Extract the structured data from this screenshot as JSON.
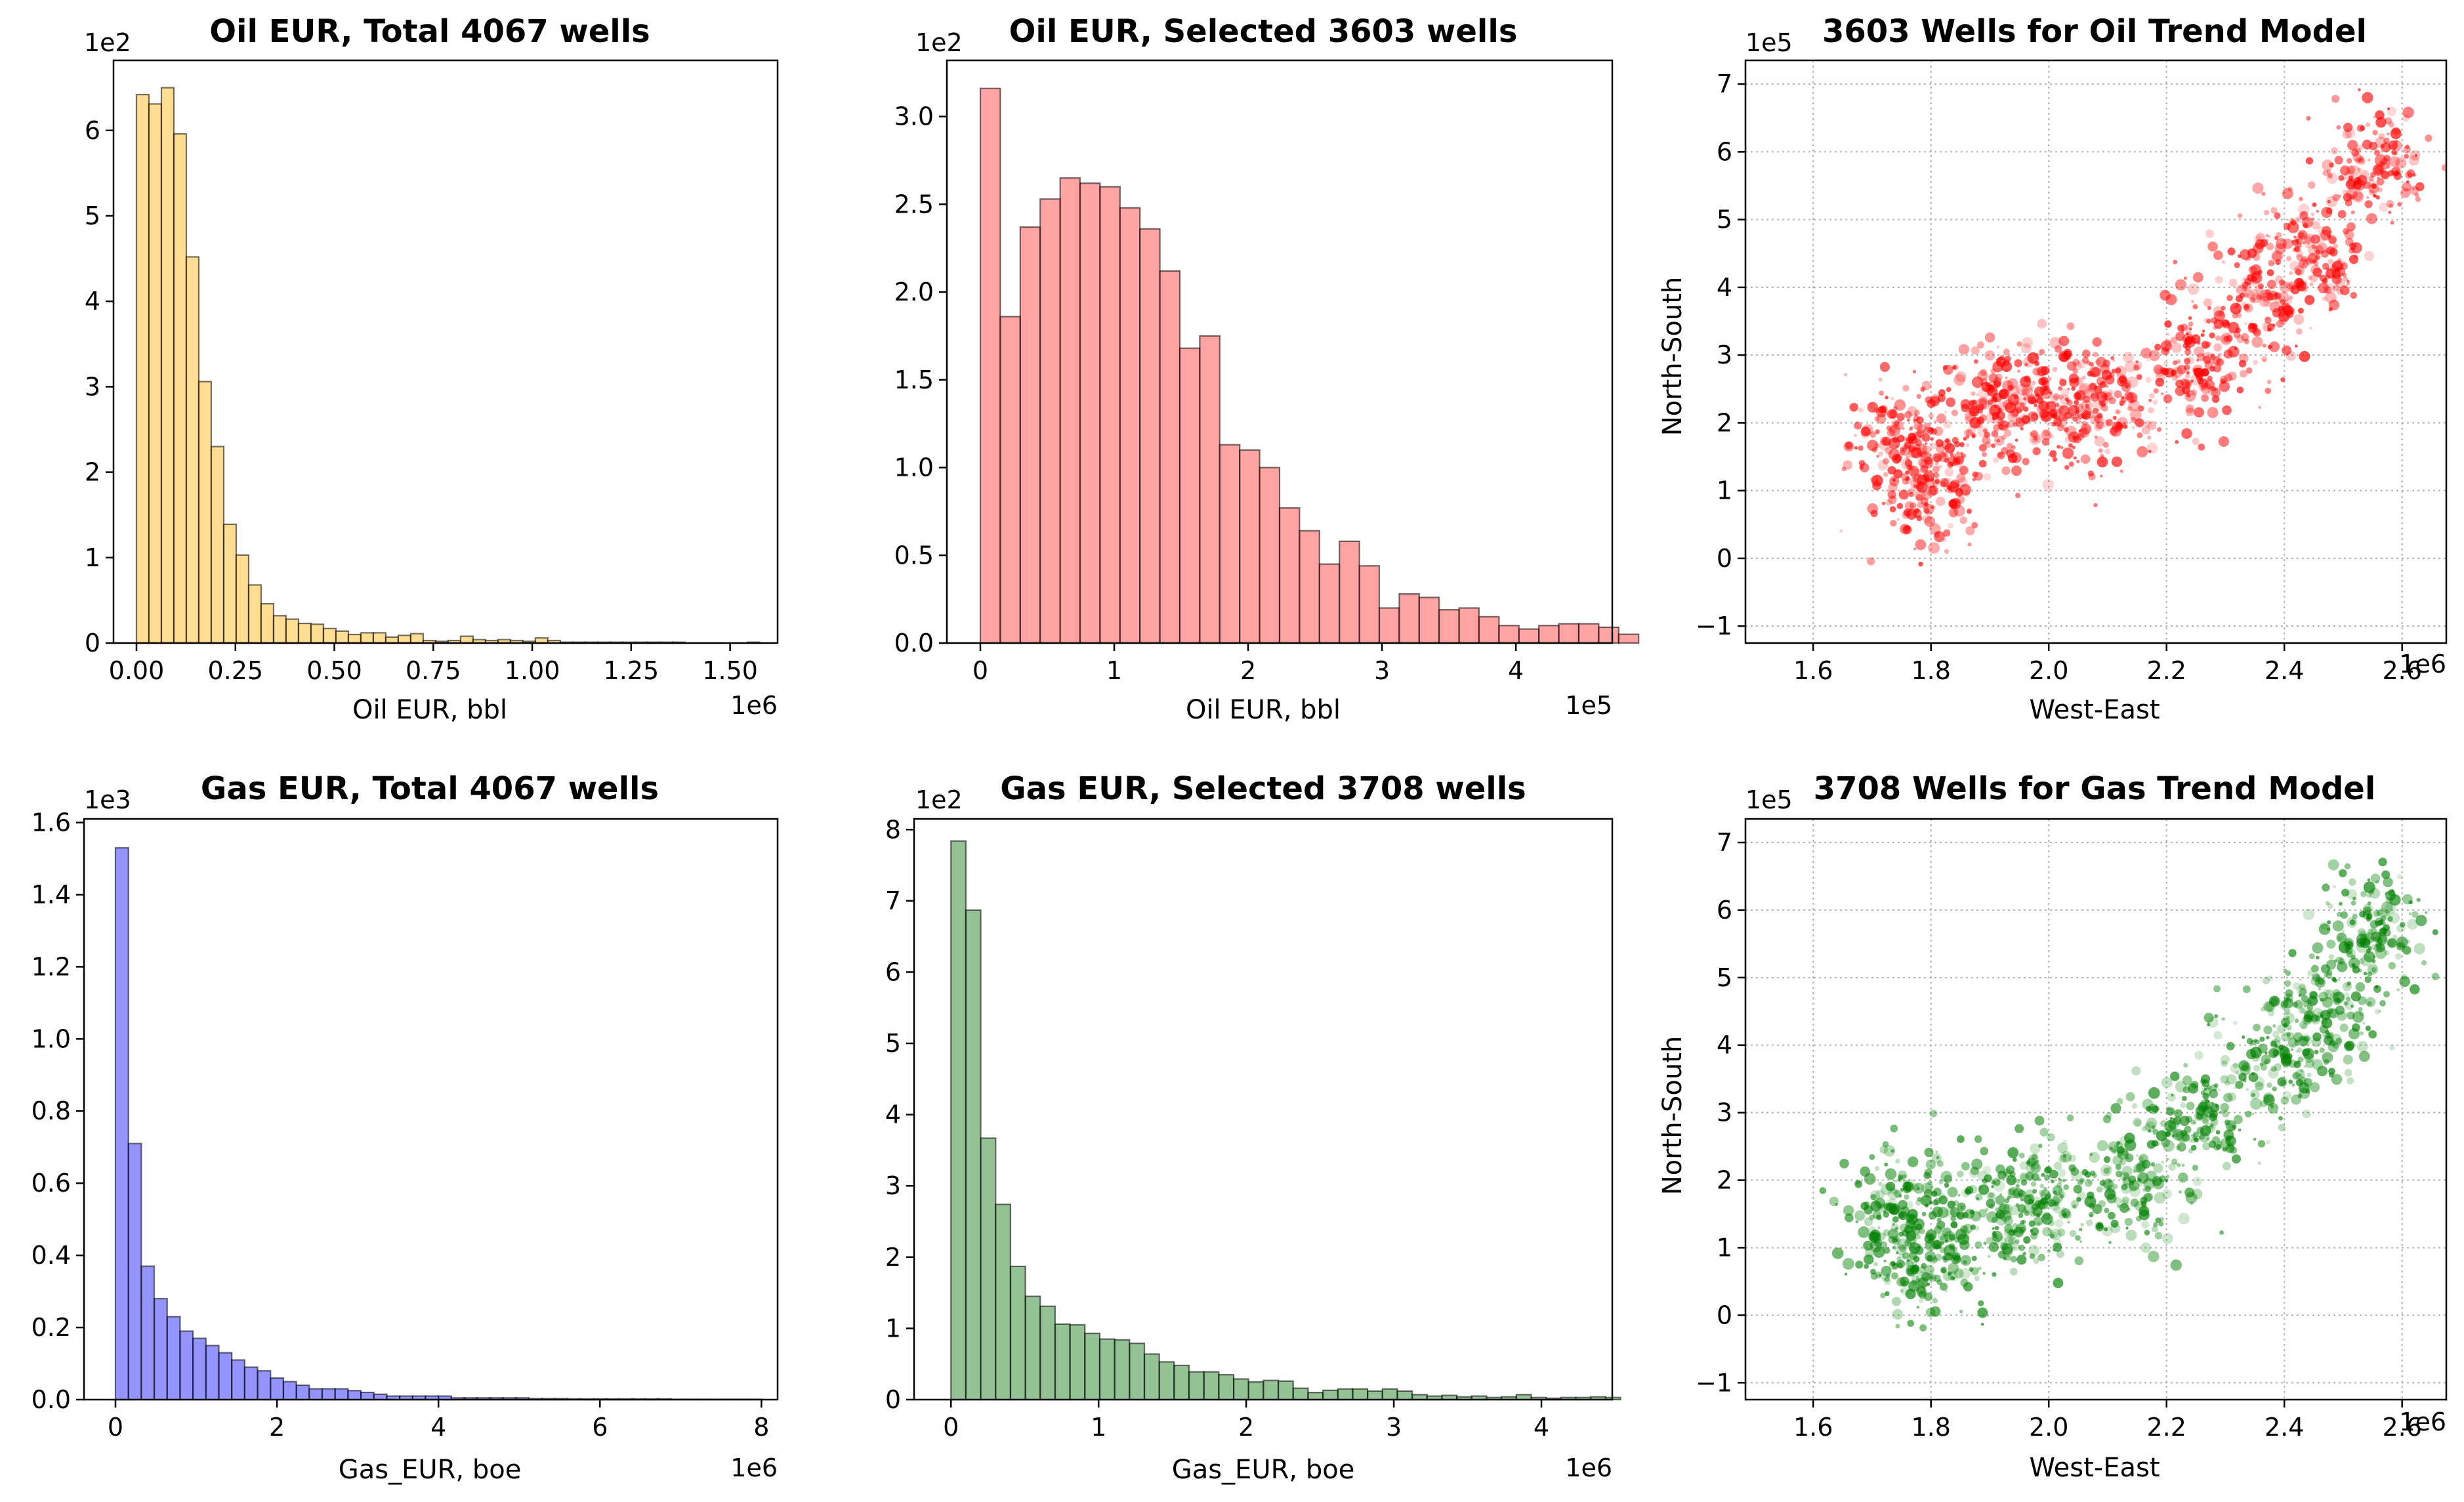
{
  "chart_data": [
    {
      "type": "bar",
      "title": "Oil EUR, Total 4067 wells",
      "xlabel": "Oil EUR, bbl",
      "ylabel": "",
      "x_multiplier": "1e6",
      "y_multiplier": "1e2",
      "xlim": [
        -0.058,
        1.62
      ],
      "ylim": [
        0,
        6.82
      ],
      "xticks": [
        0.0,
        0.25,
        0.5,
        0.75,
        1.0,
        1.25,
        1.5
      ],
      "xtick_labels": [
        "0.00",
        "0.25",
        "0.50",
        "0.75",
        "1.00",
        "1.25",
        "1.50"
      ],
      "yticks": [
        0,
        1,
        2,
        3,
        4,
        5,
        6
      ],
      "ytick_labels": [
        "0",
        "1",
        "2",
        "3",
        "4",
        "5",
        "6"
      ],
      "bin_start": 0.0,
      "bin_width": 0.0315,
      "values": [
        6.42,
        6.31,
        6.5,
        5.96,
        4.52,
        3.06,
        2.3,
        1.39,
        1.03,
        0.68,
        0.46,
        0.32,
        0.28,
        0.23,
        0.22,
        0.17,
        0.14,
        0.1,
        0.12,
        0.12,
        0.07,
        0.09,
        0.11,
        0.03,
        0.02,
        0.03,
        0.08,
        0.04,
        0.03,
        0.04,
        0.03,
        0.02,
        0.06,
        0.03,
        0.01,
        0.01,
        0.01,
        0.01,
        0.01,
        0.01,
        0.01,
        0.01,
        0.01,
        0.01,
        0.0,
        0.0,
        0.0,
        0.0,
        0.0,
        0.01
      ],
      "color": "#ffc84d"
    },
    {
      "type": "bar",
      "title": "Oil EUR, Selected 3603 wells",
      "xlabel": "Oil EUR, bbl",
      "ylabel": "",
      "x_multiplier": "1e5",
      "y_multiplier": "1e2",
      "xlim": [
        -0.25,
        4.72
      ],
      "ylim": [
        0,
        3.32
      ],
      "xticks": [
        0,
        1,
        2,
        3,
        4
      ],
      "xtick_labels": [
        "0",
        "1",
        "2",
        "3",
        "4"
      ],
      "yticks": [
        0.0,
        0.5,
        1.0,
        1.5,
        2.0,
        2.5,
        3.0
      ],
      "ytick_labels": [
        "0.0",
        "0.5",
        "1.0",
        "1.5",
        "2.0",
        "2.5",
        "3.0"
      ],
      "bin_start": 0.0,
      "bin_width": 0.149,
      "values": [
        3.16,
        1.86,
        2.37,
        2.53,
        2.65,
        2.62,
        2.6,
        2.48,
        2.36,
        2.12,
        1.68,
        1.75,
        1.13,
        1.1,
        1.0,
        0.77,
        0.64,
        0.45,
        0.58,
        0.44,
        0.2,
        0.28,
        0.26,
        0.19,
        0.2,
        0.15,
        0.1,
        0.08,
        0.1,
        0.11,
        0.11,
        0.09,
        0.05
      ],
      "color": "#ff6666"
    },
    {
      "type": "scatter",
      "title": "3603 Wells for Oil Trend Model",
      "xlabel": "West-East",
      "ylabel": "North-South",
      "x_multiplier": "1e6",
      "y_multiplier": "1e5",
      "xlim": [
        1.485,
        2.675
      ],
      "ylim": [
        -1.25,
        7.35
      ],
      "xticks": [
        1.6,
        1.8,
        2.0,
        2.2,
        2.4,
        2.6
      ],
      "xtick_labels": [
        "1.6",
        "1.8",
        "2.0",
        "2.2",
        "2.4",
        "2.6"
      ],
      "yticks": [
        -1,
        0,
        1,
        2,
        3,
        4,
        5,
        6,
        7
      ],
      "ytick_labels": [
        "−1",
        "0",
        "1",
        "2",
        "3",
        "4",
        "5",
        "6",
        "7"
      ],
      "grid": true,
      "color": "#ff0000",
      "approximate_point_clusters": [
        {
          "x": 1.75,
          "y": 1.7
        },
        {
          "x": 1.8,
          "y": 1.1
        },
        {
          "x": 1.9,
          "y": 2.3
        },
        {
          "x": 2.0,
          "y": 2.4
        },
        {
          "x": 2.1,
          "y": 2.2
        },
        {
          "x": 2.25,
          "y": 2.8
        },
        {
          "x": 2.35,
          "y": 3.8
        },
        {
          "x": 2.45,
          "y": 4.5
        },
        {
          "x": 2.55,
          "y": 5.8
        }
      ]
    },
    {
      "type": "bar",
      "title": "Gas EUR, Total 4067 wells",
      "xlabel": "Gas_EUR, boe",
      "ylabel": "",
      "x_multiplier": "1e6",
      "y_multiplier": "1e3",
      "xlim": [
        -0.39,
        8.2
      ],
      "ylim": [
        0,
        1.61
      ],
      "xticks": [
        0,
        2,
        4,
        6,
        8
      ],
      "xtick_labels": [
        "0",
        "2",
        "4",
        "6",
        "8"
      ],
      "yticks": [
        0.0,
        0.2,
        0.4,
        0.6,
        0.8,
        1.0,
        1.2,
        1.4,
        1.6
      ],
      "ytick_labels": [
        "0.0",
        "0.2",
        "0.4",
        "0.6",
        "0.8",
        "1.0",
        "1.2",
        "1.4",
        "1.6"
      ],
      "bin_start": 0.0,
      "bin_width": 0.16,
      "values": [
        1.53,
        0.71,
        0.37,
        0.28,
        0.23,
        0.19,
        0.17,
        0.15,
        0.13,
        0.11,
        0.09,
        0.08,
        0.06,
        0.05,
        0.04,
        0.03,
        0.03,
        0.03,
        0.025,
        0.02,
        0.015,
        0.01,
        0.01,
        0.01,
        0.01,
        0.01,
        0.005,
        0.005,
        0.005,
        0.005,
        0.005,
        0.005,
        0.003,
        0.003,
        0.003,
        0.002,
        0.002,
        0.002,
        0.002,
        0.002,
        0.002,
        0.002,
        0.002,
        0.001,
        0.001,
        0.001,
        0.001,
        0.001,
        0.001,
        0.001
      ],
      "color": "#4d4dff"
    },
    {
      "type": "bar",
      "title": "Gas EUR, Selected 3708 wells",
      "xlabel": "Gas_EUR, boe",
      "ylabel": "",
      "x_multiplier": "1e6",
      "y_multiplier": "1e2",
      "xlim": [
        -0.25,
        4.48
      ],
      "ylim": [
        0,
        8.15
      ],
      "xticks": [
        0,
        1,
        2,
        3,
        4
      ],
      "xtick_labels": [
        "0",
        "1",
        "2",
        "3",
        "4"
      ],
      "yticks": [
        0,
        1,
        2,
        3,
        4,
        5,
        6,
        7,
        8
      ],
      "ytick_labels": [
        "0",
        "1",
        "2",
        "3",
        "4",
        "5",
        "6",
        "7",
        "8"
      ],
      "bin_start": 0.0,
      "bin_width": 0.1008,
      "values": [
        7.84,
        6.87,
        3.67,
        2.74,
        1.87,
        1.45,
        1.31,
        1.06,
        1.05,
        0.93,
        0.85,
        0.84,
        0.79,
        0.64,
        0.53,
        0.48,
        0.39,
        0.39,
        0.35,
        0.29,
        0.25,
        0.27,
        0.26,
        0.16,
        0.1,
        0.13,
        0.15,
        0.15,
        0.12,
        0.15,
        0.12,
        0.07,
        0.05,
        0.06,
        0.04,
        0.05,
        0.03,
        0.04,
        0.07,
        0.03,
        0.02,
        0.03,
        0.03,
        0.04,
        0.03
      ],
      "color": "#4d994d"
    },
    {
      "type": "scatter",
      "title": "3708 Wells for Gas Trend Model",
      "xlabel": "West-East",
      "ylabel": "North-South",
      "x_multiplier": "1e6",
      "y_multiplier": "1e5",
      "xlim": [
        1.485,
        2.675
      ],
      "ylim": [
        -1.25,
        7.35
      ],
      "xticks": [
        1.6,
        1.8,
        2.0,
        2.2,
        2.4,
        2.6
      ],
      "xtick_labels": [
        "1.6",
        "1.8",
        "2.0",
        "2.2",
        "2.4",
        "2.6"
      ],
      "yticks": [
        -1,
        0,
        1,
        2,
        3,
        4,
        5,
        6,
        7
      ],
      "ytick_labels": [
        "−1",
        "0",
        "1",
        "2",
        "3",
        "4",
        "5",
        "6",
        "7"
      ],
      "grid": true,
      "color": "#008000",
      "approximate_point_clusters": [
        {
          "x": 1.75,
          "y": 1.5
        },
        {
          "x": 1.78,
          "y": 0.8
        },
        {
          "x": 1.9,
          "y": 1.5
        },
        {
          "x": 2.0,
          "y": 1.7
        },
        {
          "x": 2.15,
          "y": 2.0
        },
        {
          "x": 2.25,
          "y": 2.9
        },
        {
          "x": 2.38,
          "y": 3.8
        },
        {
          "x": 2.48,
          "y": 4.6
        },
        {
          "x": 2.55,
          "y": 5.8
        }
      ]
    }
  ]
}
